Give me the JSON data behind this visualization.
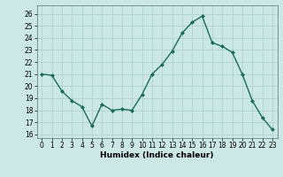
{
  "x": [
    0,
    1,
    2,
    3,
    4,
    5,
    6,
    7,
    8,
    9,
    10,
    11,
    12,
    13,
    14,
    15,
    16,
    17,
    18,
    19,
    20,
    21,
    22,
    23
  ],
  "y": [
    21.0,
    20.9,
    19.6,
    18.8,
    18.3,
    16.7,
    18.5,
    18.0,
    18.1,
    18.0,
    19.3,
    21.0,
    21.8,
    22.9,
    24.4,
    25.3,
    25.8,
    23.6,
    23.3,
    22.8,
    21.0,
    18.8,
    17.4,
    16.4
  ],
  "line_color": "#1a6b5a",
  "marker": "D",
  "marker_size": 2,
  "linewidth": 1.0,
  "xlabel": "Humidex (Indice chaleur)",
  "ylabel": "",
  "xlim": [
    -0.5,
    23.5
  ],
  "ylim": [
    15.7,
    26.7
  ],
  "yticks": [
    16,
    17,
    18,
    19,
    20,
    21,
    22,
    23,
    24,
    25,
    26
  ],
  "xticks": [
    0,
    1,
    2,
    3,
    4,
    5,
    6,
    7,
    8,
    9,
    10,
    11,
    12,
    13,
    14,
    15,
    16,
    17,
    18,
    19,
    20,
    21,
    22,
    23
  ],
  "bg_color": "#cce8e6",
  "grid_color": "#aacfcc",
  "xlabel_fontsize": 6.5,
  "tick_fontsize": 5.5
}
